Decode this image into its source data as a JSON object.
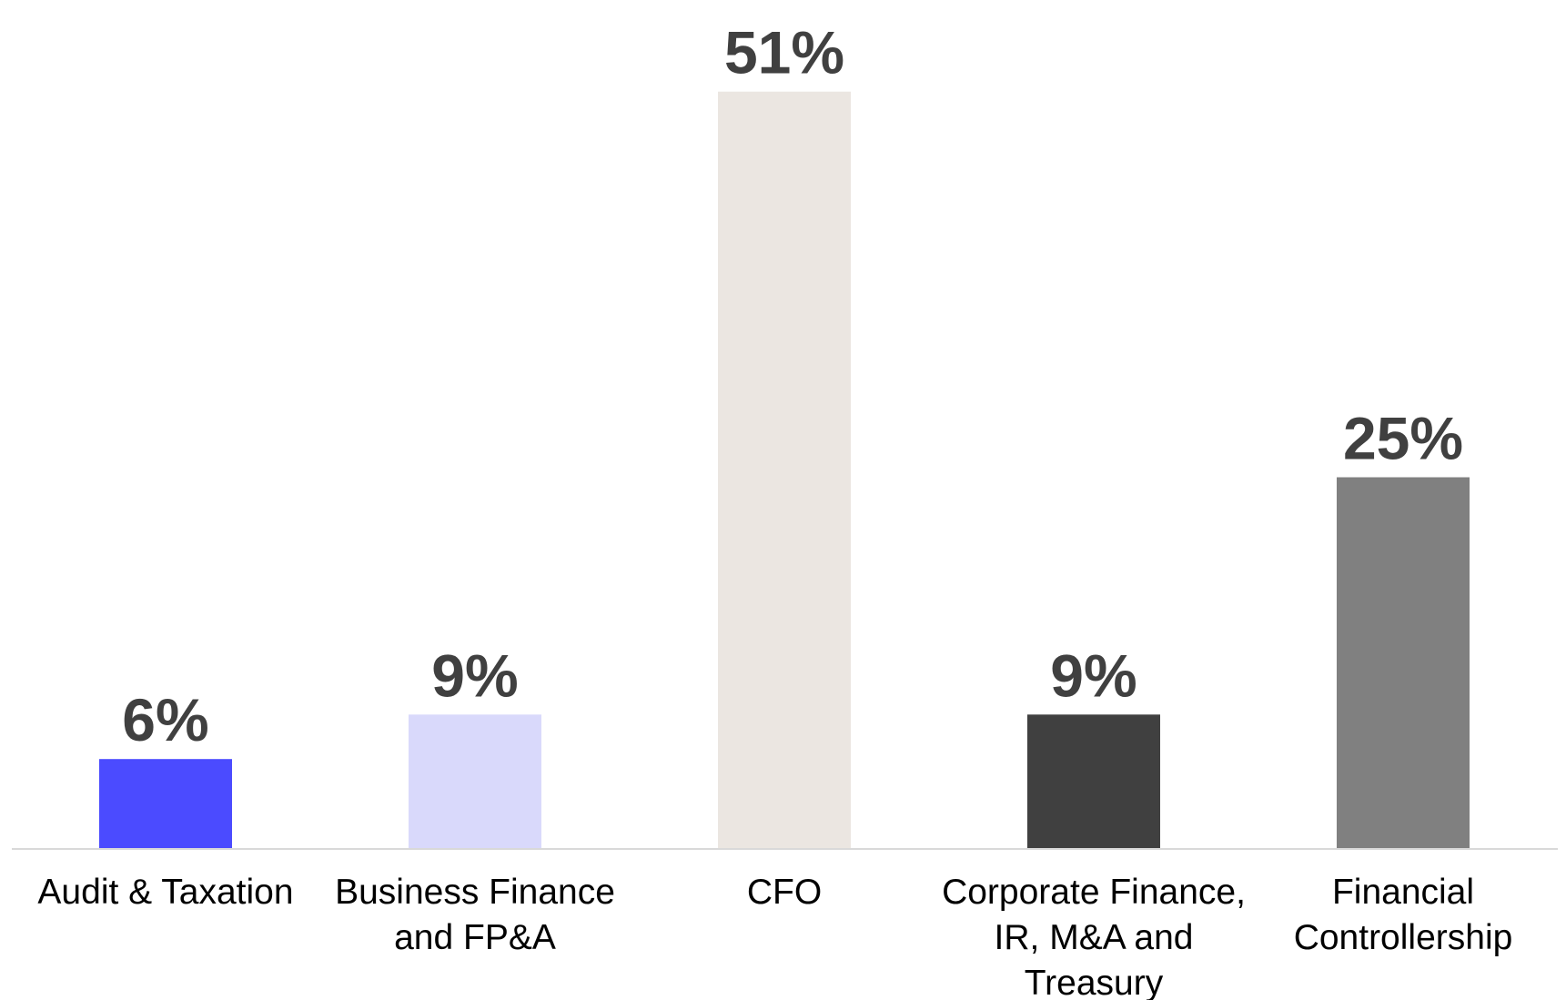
{
  "chart_data": {
    "type": "bar",
    "categories": [
      "Audit & Taxation",
      "Business Finance and FP&A",
      "CFO",
      "Corporate Finance, IR, M&A and Treasury",
      "Financial Controllership"
    ],
    "values": [
      6,
      9,
      51,
      9,
      25
    ],
    "value_labels": [
      "6%",
      "9%",
      "51%",
      "9%",
      "25%"
    ],
    "colors": [
      "#4b4bff",
      "#d9d9fb",
      "#ebe6e1",
      "#404040",
      "#808080"
    ]
  }
}
